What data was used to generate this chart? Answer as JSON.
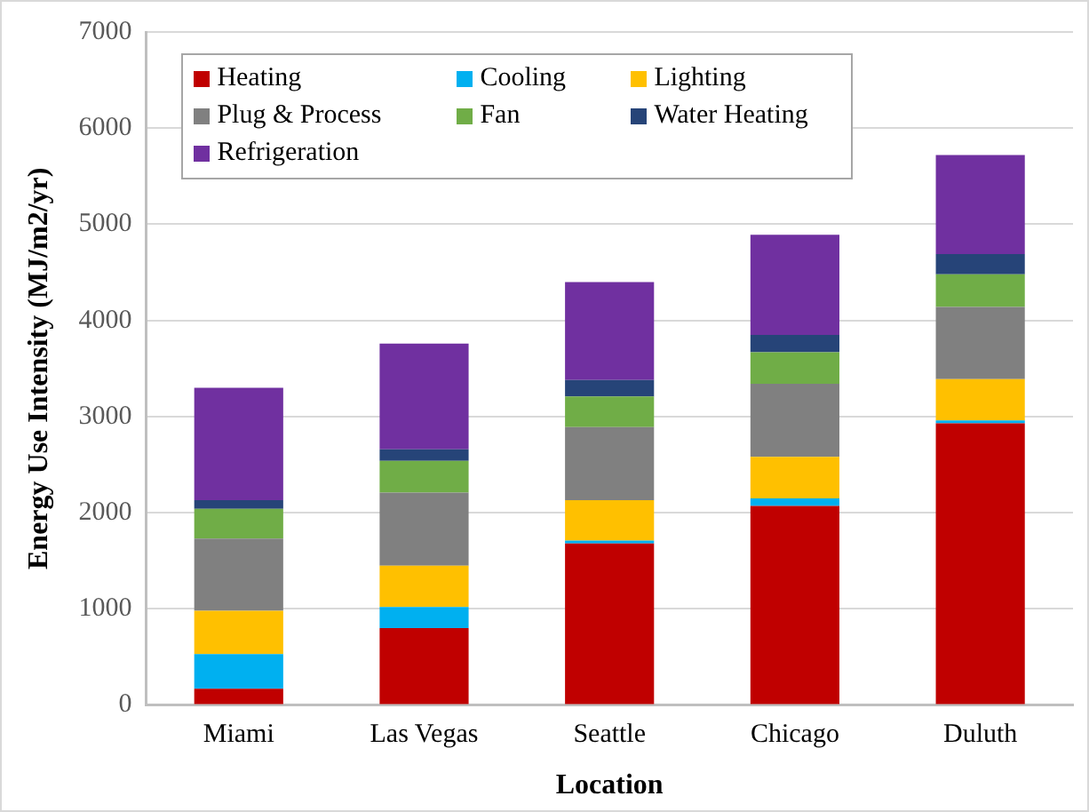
{
  "chart_data": {
    "type": "bar",
    "stacked": true,
    "xlabel": "Location",
    "ylabel": "Energy Use Intensity (MJ/m2/yr)",
    "categories": [
      "Miami",
      "Las Vegas",
      "Seattle",
      "Chicago",
      "Duluth"
    ],
    "series": [
      {
        "name": "Heating",
        "color": "#c00000",
        "values": [
          170,
          800,
          1680,
          2070,
          2930
        ]
      },
      {
        "name": "Cooling",
        "color": "#00b0f0",
        "values": [
          360,
          220,
          30,
          80,
          30
        ]
      },
      {
        "name": "Lighting",
        "color": "#ffc000",
        "values": [
          450,
          430,
          420,
          430,
          430
        ]
      },
      {
        "name": "Plug & Process",
        "color": "#808080",
        "values": [
          750,
          760,
          760,
          760,
          750
        ]
      },
      {
        "name": "Fan",
        "color": "#70ad47",
        "values": [
          310,
          330,
          320,
          330,
          340
        ]
      },
      {
        "name": "Water Heating",
        "color": "#264478",
        "values": [
          90,
          120,
          170,
          180,
          210
        ]
      },
      {
        "name": "Refrigeration",
        "color": "#7030a0",
        "values": [
          1170,
          1100,
          1020,
          1040,
          1030
        ]
      }
    ],
    "ylim": [
      0,
      7000
    ],
    "yticks": [
      0,
      1000,
      2000,
      3000,
      4000,
      5000,
      6000,
      7000
    ],
    "grid": "y",
    "legend": "top left"
  }
}
